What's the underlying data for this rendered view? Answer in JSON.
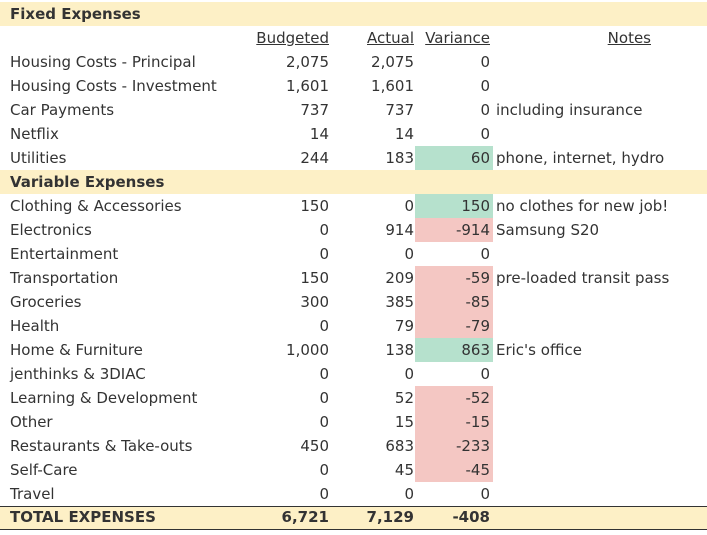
{
  "sections": {
    "fixed_title": "Fixed Expenses",
    "variable_title": "Variable Expenses"
  },
  "columns": {
    "budgeted": "Budgeted",
    "actual": "Actual",
    "variance": "Variance",
    "notes": "Notes"
  },
  "fixed": [
    {
      "category": "Housing Costs - Principal",
      "budgeted": "2,075",
      "actual": "2,075",
      "variance": "0",
      "note": ""
    },
    {
      "category": "Housing Costs - Investment",
      "budgeted": "1,601",
      "actual": "1,601",
      "variance": "0",
      "note": ""
    },
    {
      "category": "Car Payments",
      "budgeted": "737",
      "actual": "737",
      "variance": "0",
      "note": "including insurance"
    },
    {
      "category": "Netflix",
      "budgeted": "14",
      "actual": "14",
      "variance": "0",
      "note": ""
    },
    {
      "category": "Utilities",
      "budgeted": "244",
      "actual": "183",
      "variance": "60",
      "note": "phone, internet, hydro"
    }
  ],
  "variable": [
    {
      "category": "Clothing & Accessories",
      "budgeted": "150",
      "actual": "0",
      "variance": "150",
      "note": "no clothes for new job!"
    },
    {
      "category": "Electronics",
      "budgeted": "0",
      "actual": "914",
      "variance": "-914",
      "note": "Samsung S20"
    },
    {
      "category": "Entertainment",
      "budgeted": "0",
      "actual": "0",
      "variance": "0",
      "note": ""
    },
    {
      "category": "Transportation",
      "budgeted": "150",
      "actual": "209",
      "variance": "-59",
      "note": "pre-loaded transit pass"
    },
    {
      "category": "Groceries",
      "budgeted": "300",
      "actual": "385",
      "variance": "-85",
      "note": ""
    },
    {
      "category": "Health",
      "budgeted": "0",
      "actual": "79",
      "variance": "-79",
      "note": ""
    },
    {
      "category": "Home & Furniture",
      "budgeted": "1,000",
      "actual": "138",
      "variance": "863",
      "note": "Eric's office"
    },
    {
      "category": "jenthinks & 3DIAC",
      "budgeted": "0",
      "actual": "0",
      "variance": "0",
      "note": ""
    },
    {
      "category": "Learning & Development",
      "budgeted": "0",
      "actual": "52",
      "variance": "-52",
      "note": ""
    },
    {
      "category": "Other",
      "budgeted": "0",
      "actual": "15",
      "variance": "-15",
      "note": ""
    },
    {
      "category": "Restaurants & Take-outs",
      "budgeted": "450",
      "actual": "683",
      "variance": "-233",
      "note": ""
    },
    {
      "category": "Self-Care",
      "budgeted": "0",
      "actual": "45",
      "variance": "-45",
      "note": ""
    },
    {
      "category": "Travel",
      "budgeted": "0",
      "actual": "0",
      "variance": "0",
      "note": ""
    }
  ],
  "total": {
    "label": "TOTAL EXPENSES",
    "budgeted": "6,721",
    "actual": "7,129",
    "variance": "-408"
  },
  "colors": {
    "section_fill": "#fdf0c6",
    "positive_variance": "#b6e1cd",
    "negative_variance": "#f4c7c3",
    "text": "#333333"
  }
}
